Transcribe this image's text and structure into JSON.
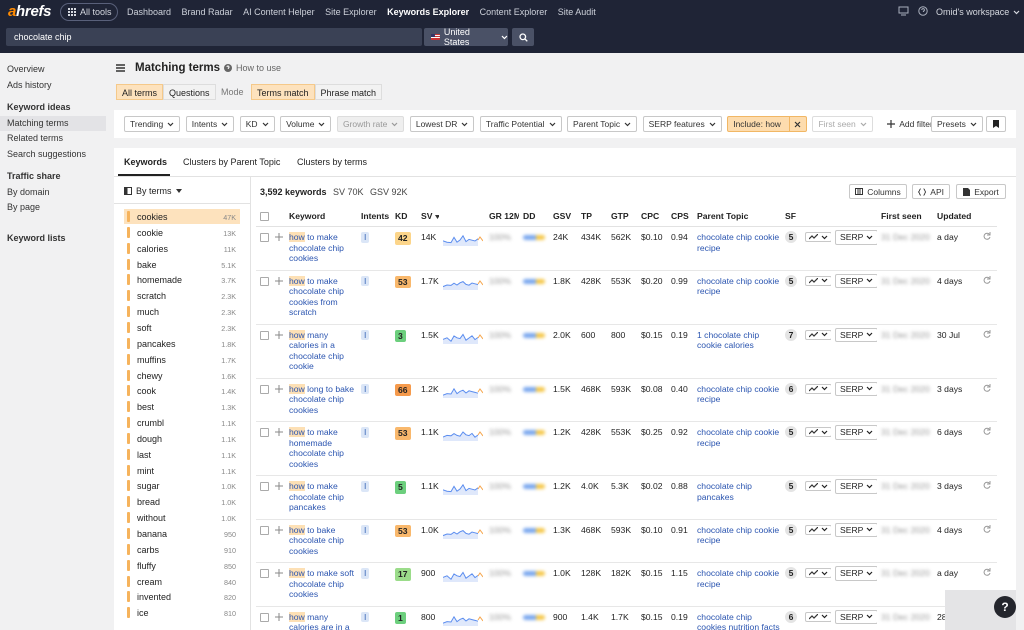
{
  "topbar": {
    "logo": "ahrefs",
    "all_tools": "All tools",
    "nav": [
      "Dashboard",
      "Brand Radar",
      "AI Content Helper",
      "Site Explorer",
      "Keywords Explorer",
      "Content Explorer",
      "Site Audit"
    ],
    "workspace": "Omid's workspace"
  },
  "search": {
    "query": "chocolate chip",
    "country": "United States"
  },
  "sidebar": {
    "top": [
      "Overview",
      "Ads history"
    ],
    "sections": [
      {
        "title": "Keyword ideas",
        "items": [
          "Matching terms",
          "Related terms",
          "Search suggestions"
        ]
      },
      {
        "title": "Traffic share",
        "items": [
          "By domain",
          "By page"
        ]
      },
      {
        "title": "Keyword lists"
      }
    ]
  },
  "header": {
    "title": "Matching terms",
    "help": "How to use"
  },
  "term_tabs": [
    "All terms",
    "Questions"
  ],
  "mode_label": "Mode",
  "mode_tabs": [
    "Terms match",
    "Phrase match"
  ],
  "filters": {
    "dropdowns": [
      "Trending",
      "Intents",
      "KD",
      "Volume",
      "Growth rate",
      "Lowest DR",
      "Traffic Potential",
      "Parent Topic",
      "SERP features"
    ],
    "include": "Include: how",
    "first_seen": "First seen",
    "add_filter": "Add filter",
    "presets": "Presets"
  },
  "view_tabs": [
    "Keywords",
    "Clusters by Parent Topic",
    "Clusters by terms"
  ],
  "terms_panel": {
    "title": "By terms",
    "terms": [
      [
        "cookies",
        "47K"
      ],
      [
        "cookie",
        "13K"
      ],
      [
        "calories",
        "11K"
      ],
      [
        "bake",
        "5.1K"
      ],
      [
        "homemade",
        "3.7K"
      ],
      [
        "scratch",
        "2.3K"
      ],
      [
        "much",
        "2.3K"
      ],
      [
        "soft",
        "2.3K"
      ],
      [
        "pancakes",
        "1.8K"
      ],
      [
        "muffins",
        "1.7K"
      ],
      [
        "chewy",
        "1.6K"
      ],
      [
        "cook",
        "1.4K"
      ],
      [
        "best",
        "1.3K"
      ],
      [
        "crumbl",
        "1.1K"
      ],
      [
        "dough",
        "1.1K"
      ],
      [
        "last",
        "1.1K"
      ],
      [
        "mint",
        "1.1K"
      ],
      [
        "sugar",
        "1.0K"
      ],
      [
        "bread",
        "1.0K"
      ],
      [
        "without",
        "1.0K"
      ],
      [
        "banana",
        "950"
      ],
      [
        "carbs",
        "910"
      ],
      [
        "fluffy",
        "850"
      ],
      [
        "cream",
        "840"
      ],
      [
        "invented",
        "820"
      ],
      [
        "ice",
        "810"
      ]
    ]
  },
  "summary": {
    "keywords": "3,592 keywords",
    "sv": "SV 70K",
    "gsv": "GSV 92K",
    "buttons": [
      "Columns",
      "API",
      "Export"
    ]
  },
  "table": {
    "headers": [
      "Keyword",
      "Intents",
      "KD",
      "SV",
      "GR 12M",
      "DD",
      "GSV",
      "TP",
      "GTP",
      "CPC",
      "CPS",
      "Parent Topic",
      "SF",
      "First seen",
      "Updated"
    ],
    "rows": [
      {
        "keyword": "how to make chocolate chip cookies",
        "intent": "I",
        "kd": 42,
        "sv": "14K",
        "gr": "100%",
        "gsv": "24K",
        "tp": "434K",
        "gtp": "562K",
        "cpc": "$0.10",
        "cps": "0.94",
        "parent": "chocolate chip cookie recipe",
        "sf": 5,
        "serp": "SERP",
        "first_seen": "31 Dec 2020",
        "updated": "a day"
      },
      {
        "keyword": "how to make chocolate chip cookies from scratch",
        "intent": "I",
        "kd": 53,
        "sv": "1.7K",
        "gr": "100%",
        "gsv": "1.8K",
        "tp": "428K",
        "gtp": "553K",
        "cpc": "$0.20",
        "cps": "0.99",
        "parent": "chocolate chip cookie recipe",
        "sf": 5,
        "serp": "SERP",
        "first_seen": "31 Dec 2020",
        "updated": "4 days"
      },
      {
        "keyword": "how many calories in a chocolate chip cookie",
        "intent": "I",
        "kd": 3,
        "sv": "1.5K",
        "gr": "100%",
        "gsv": "2.0K",
        "tp": "600",
        "gtp": "800",
        "cpc": "$0.15",
        "cps": "0.19",
        "parent": "1 chocolate chip cookie calories",
        "sf": 7,
        "serp": "SERP",
        "first_seen": "31 Dec 2020",
        "updated": "30 Jul"
      },
      {
        "keyword": "how long to bake chocolate chip cookies",
        "intent": "I",
        "kd": 66,
        "sv": "1.2K",
        "gr": "100%",
        "gsv": "1.5K",
        "tp": "468K",
        "gtp": "593K",
        "cpc": "$0.08",
        "cps": "0.40",
        "parent": "chocolate chip cookie recipe",
        "sf": 6,
        "serp": "SERP",
        "first_seen": "31 Dec 2020",
        "updated": "3 days"
      },
      {
        "keyword": "how to make homemade chocolate chip cookies",
        "intent": "I",
        "kd": 53,
        "sv": "1.1K",
        "gr": "100%",
        "gsv": "1.2K",
        "tp": "428K",
        "gtp": "553K",
        "cpc": "$0.25",
        "cps": "0.92",
        "parent": "chocolate chip cookie recipe",
        "sf": 5,
        "serp": "SERP",
        "first_seen": "31 Dec 2020",
        "updated": "6 days"
      },
      {
        "keyword": "how to make chocolate chip pancakes",
        "intent": "I",
        "kd": 5,
        "sv": "1.1K",
        "gr": "100%",
        "gsv": "1.2K",
        "tp": "4.0K",
        "gtp": "5.3K",
        "cpc": "$0.02",
        "cps": "0.88",
        "parent": "chocolate chip pancakes",
        "sf": 5,
        "serp": "SERP",
        "first_seen": "31 Dec 2020",
        "updated": "3 days"
      },
      {
        "keyword": "how to bake chocolate chip cookies",
        "intent": "I",
        "kd": 53,
        "sv": "1.0K",
        "gr": "100%",
        "gsv": "1.3K",
        "tp": "468K",
        "gtp": "593K",
        "cpc": "$0.10",
        "cps": "0.91",
        "parent": "chocolate chip cookie recipe",
        "sf": 5,
        "serp": "SERP",
        "first_seen": "31 Dec 2020",
        "updated": "4 days"
      },
      {
        "keyword": "how to make soft chocolate chip cookies",
        "intent": "I",
        "kd": 17,
        "sv": "900",
        "gr": "100%",
        "gsv": "1.0K",
        "tp": "128K",
        "gtp": "182K",
        "cpc": "$0.15",
        "cps": "1.15",
        "parent": "chocolate chip cookie recipe",
        "sf": 5,
        "serp": "SERP",
        "first_seen": "31 Dec 2020",
        "updated": "a day"
      },
      {
        "keyword": "how many calories are in a chocolate chip cookie",
        "intent": "I",
        "kd": 1,
        "sv": "800",
        "gr": "100%",
        "gsv": "900",
        "tp": "1.4K",
        "gtp": "1.7K",
        "cpc": "$0.15",
        "cps": "0.19",
        "parent": "chocolate chip cookies nutrition facts",
        "sf": 6,
        "serp": "SERP",
        "first_seen": "31 Dec 2020",
        "updated": "28 Jul"
      }
    ]
  },
  "help_button": "?"
}
